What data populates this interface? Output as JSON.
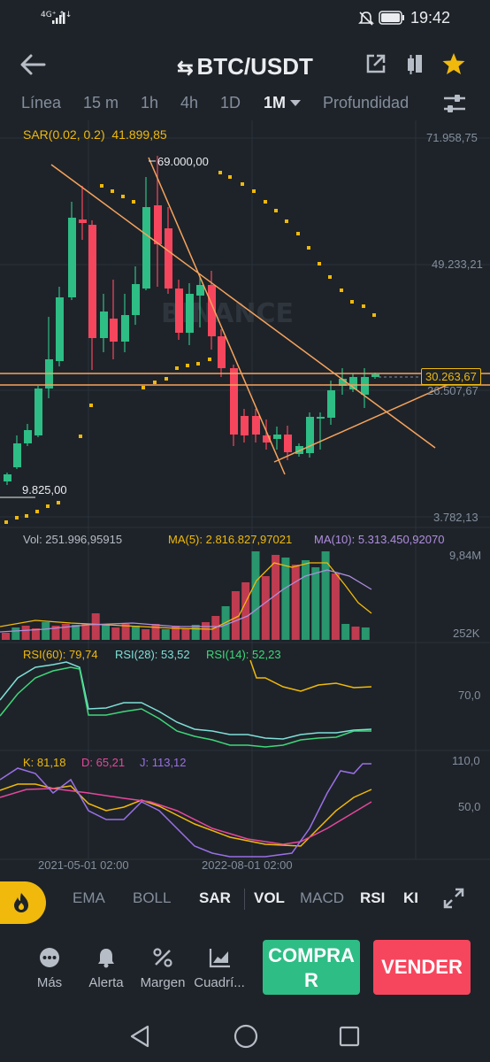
{
  "status_bar": {
    "network": "4G⁺ ↑↓",
    "time": "19:42"
  },
  "header": {
    "pair": "BTC/USDT"
  },
  "timeframes": [
    {
      "label": "Línea",
      "active": false
    },
    {
      "label": "15 m",
      "active": false
    },
    {
      "label": "1h",
      "active": false
    },
    {
      "label": "4h",
      "active": false
    },
    {
      "label": "1D",
      "active": false
    },
    {
      "label": "1M",
      "active": true
    },
    {
      "label": "Profundidad",
      "active": false
    }
  ],
  "main_chart": {
    "sar_label": "SAR(0.02, 0.2)",
    "sar_value": "41.899,85",
    "price_ticks": [
      "71.958,75",
      "49.233,21",
      "26.507,67",
      "3.782,13"
    ],
    "current_price": "30.263,67",
    "high_marker": "69.000,00",
    "low_marker": "9.825,00",
    "watermark": "BINANCE"
  },
  "volume": {
    "vol_label": "Vol: 251.996,95915",
    "ma5_label": "MA(5): 2.816.827,97021",
    "ma10_label": "MA(10): 5.313.450,92070",
    "ticks": [
      "9,84M",
      "252K"
    ]
  },
  "rsi": {
    "rsi60": "RSI(60): 79,74",
    "rsi28": "RSI(28): 53,52",
    "rsi14": "RSI(14): 52,23",
    "tick": "70,0"
  },
  "kdj": {
    "k": "K: 81,18",
    "d": "D: 65,21",
    "j": "J: 113,12",
    "ticks": [
      "110,0",
      "50,0"
    ]
  },
  "x_axis": [
    "2021-05-01 02:00",
    "2022-08-01 02:00"
  ],
  "indicators": [
    {
      "label": "EMA",
      "active": false
    },
    {
      "label": "BOLL",
      "active": false
    },
    {
      "label": "SAR",
      "active": true
    },
    {
      "label": "VOL",
      "active": true
    },
    {
      "label": "MACD",
      "active": false
    },
    {
      "label": "RSI",
      "active": true
    },
    {
      "label": "KI",
      "active": true
    }
  ],
  "actions": [
    {
      "label": "Más",
      "icon": "more-icon"
    },
    {
      "label": "Alerta",
      "icon": "bell-icon"
    },
    {
      "label": "Margen",
      "icon": "percent-icon"
    },
    {
      "label": "Cuadrí...",
      "icon": "grid-chart-icon"
    }
  ],
  "buy_label": "COMPRAR",
  "sell_label": "VENDER",
  "colors": {
    "up": "#2ebd85",
    "down": "#f6465d",
    "accent": "#f0b90b",
    "bg": "#1e2329"
  }
}
